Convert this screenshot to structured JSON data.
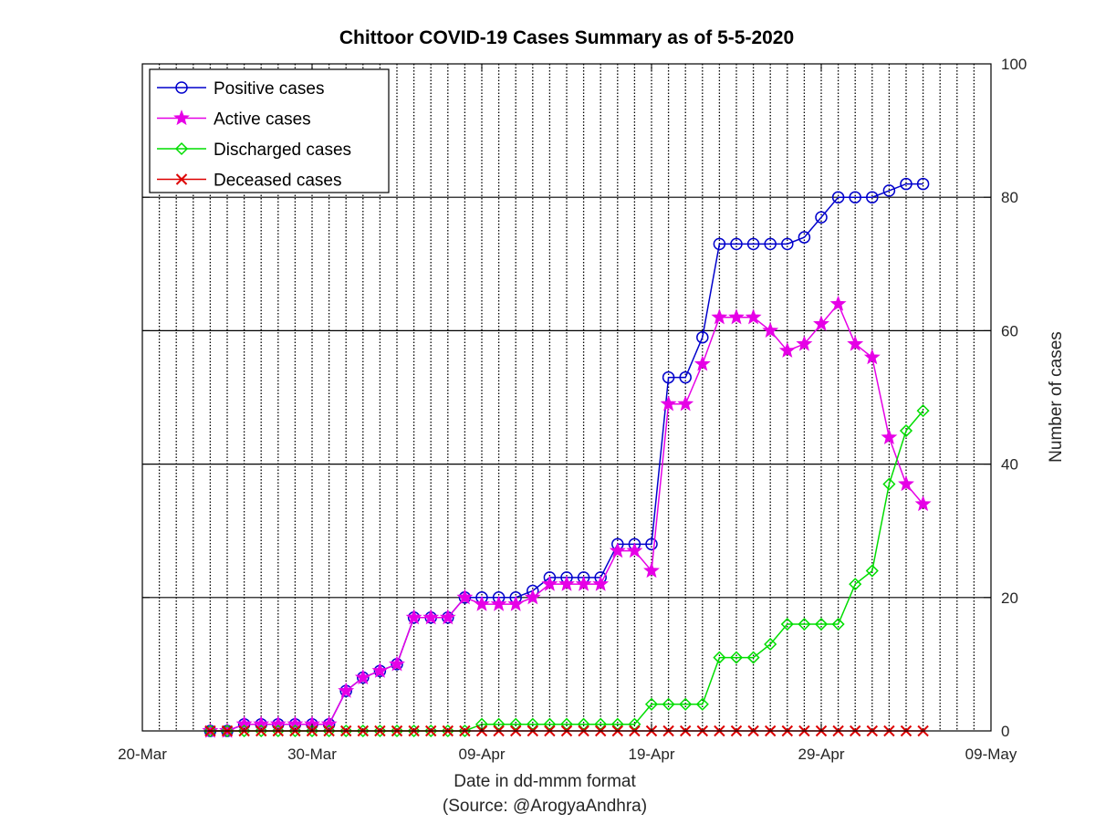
{
  "chart_data": {
    "type": "line",
    "title": "Chittoor COVID-19 Cases Summary as of 5-5-2020",
    "xlabel": "Date in dd-mmm format",
    "xlabel_note": "(Source: @ArogyaAndhra)",
    "ylabel": "Number of cases",
    "xlim": [
      "2020-03-20",
      "2020-05-09"
    ],
    "ylim": [
      0,
      100
    ],
    "x_ticks": [
      "20-Mar",
      "30-Mar",
      "09-Apr",
      "19-Apr",
      "29-Apr",
      "09-May"
    ],
    "y_ticks": [
      "0",
      "20",
      "40",
      "60",
      "80",
      "100"
    ],
    "y_tick_values": [
      0,
      20,
      40,
      60,
      80,
      100
    ],
    "y_axis_side": "right",
    "grid": "vertical dotted daily lines, horizontal solid lines at y ticks",
    "legend_placement": "top-left",
    "dates": [
      "2020-03-24",
      "2020-03-25",
      "2020-03-26",
      "2020-03-27",
      "2020-03-28",
      "2020-03-29",
      "2020-03-30",
      "2020-03-31",
      "2020-04-01",
      "2020-04-02",
      "2020-04-03",
      "2020-04-04",
      "2020-04-05",
      "2020-04-06",
      "2020-04-07",
      "2020-04-08",
      "2020-04-09",
      "2020-04-10",
      "2020-04-11",
      "2020-04-12",
      "2020-04-13",
      "2020-04-14",
      "2020-04-15",
      "2020-04-16",
      "2020-04-17",
      "2020-04-18",
      "2020-04-19",
      "2020-04-20",
      "2020-04-21",
      "2020-04-22",
      "2020-04-23",
      "2020-04-24",
      "2020-04-25",
      "2020-04-26",
      "2020-04-27",
      "2020-04-28",
      "2020-04-29",
      "2020-04-30",
      "2020-05-01",
      "2020-05-02",
      "2020-05-03",
      "2020-05-04",
      "2020-05-05"
    ],
    "series": [
      {
        "name": "Positive cases",
        "color": "#0000cc",
        "marker": "circle",
        "values": [
          0,
          0,
          1,
          1,
          1,
          1,
          1,
          1,
          6,
          8,
          9,
          10,
          17,
          17,
          17,
          20,
          20,
          20,
          20,
          21,
          23,
          23,
          23,
          23,
          28,
          28,
          28,
          53,
          53,
          59,
          73,
          73,
          73,
          73,
          73,
          74,
          77,
          80,
          80,
          80,
          81,
          82,
          82
        ]
      },
      {
        "name": "Active cases",
        "color": "#e600e6",
        "marker": "star",
        "values": [
          0,
          0,
          1,
          1,
          1,
          1,
          1,
          1,
          6,
          8,
          9,
          10,
          17,
          17,
          17,
          20,
          19,
          19,
          19,
          20,
          22,
          22,
          22,
          22,
          27,
          27,
          24,
          49,
          49,
          55,
          62,
          62,
          62,
          60,
          57,
          58,
          61,
          64,
          58,
          56,
          44,
          37,
          34
        ]
      },
      {
        "name": "Discharged cases",
        "color": "#00dd00",
        "marker": "diamond",
        "values": [
          0,
          0,
          0,
          0,
          0,
          0,
          0,
          0,
          0,
          0,
          0,
          0,
          0,
          0,
          0,
          0,
          1,
          1,
          1,
          1,
          1,
          1,
          1,
          1,
          1,
          1,
          4,
          4,
          4,
          4,
          11,
          11,
          11,
          13,
          16,
          16,
          16,
          16,
          22,
          24,
          37,
          45,
          48
        ]
      },
      {
        "name": "Deceased cases",
        "color": "#dd0000",
        "marker": "x",
        "values": [
          0,
          0,
          0,
          0,
          0,
          0,
          0,
          0,
          0,
          0,
          0,
          0,
          0,
          0,
          0,
          0,
          0,
          0,
          0,
          0,
          0,
          0,
          0,
          0,
          0,
          0,
          0,
          0,
          0,
          0,
          0,
          0,
          0,
          0,
          0,
          0,
          0,
          0,
          0,
          0,
          0,
          0,
          0
        ]
      }
    ]
  }
}
